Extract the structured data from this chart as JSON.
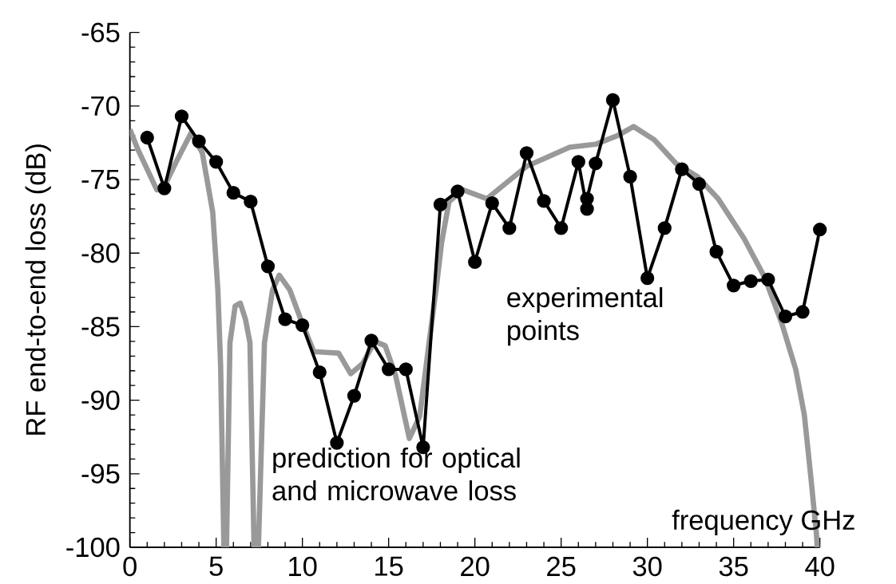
{
  "chart_data": {
    "type": "line",
    "xlabel": "frequency GHz",
    "ylabel": "RF end-to-end loss (dB)",
    "xlim": [
      0,
      40
    ],
    "ylim": [
      -100,
      -65
    ],
    "xticks": [
      0,
      5,
      10,
      15,
      20,
      25,
      30,
      35,
      40
    ],
    "yticks": [
      -65,
      -70,
      -75,
      -80,
      -85,
      -90,
      -95,
      -100
    ],
    "line_style": "solid",
    "series": [
      {
        "name": "prediction for optical and microwave loss",
        "color": "#999999",
        "marker": "none",
        "x": [
          0,
          0.48,
          1.56,
          1.9,
          2.64,
          3.56,
          4.2,
          4.8,
          5.1,
          5.26,
          5.45,
          5.5,
          5.6,
          5.8,
          6.1,
          6.4,
          6.7,
          6.96,
          7.2,
          7.3,
          7.45,
          7.8,
          8.27,
          8.66,
          9.27,
          9.9,
          10.66,
          11.4,
          12.1,
          12.8,
          13.5,
          14.2,
          14.8,
          15.4,
          16.2,
          16.8,
          17.3,
          17.8,
          18.07,
          18.5,
          19.3,
          20.7,
          23,
          25.5,
          27,
          28.3,
          29.2,
          30.4,
          31.65,
          32.9,
          34.1,
          35.6,
          36.8,
          37.8,
          38.6,
          39.1,
          39.5,
          39.8,
          39.85
        ],
        "values": [
          -71.6,
          -73.0,
          -75.7,
          -75.7,
          -73.9,
          -71.8,
          -73.2,
          -77.2,
          -82.5,
          -87.7,
          -100,
          null,
          -100,
          -86.1,
          -83.6,
          -83.4,
          -84.5,
          -86.1,
          -100,
          null,
          -100,
          -86.1,
          -82.5,
          -81.5,
          -82.5,
          -84.5,
          -86.7,
          -86.75,
          -86.8,
          -88.2,
          -87.5,
          -86.0,
          -86.3,
          -88.3,
          -92.6,
          -91.1,
          -86.5,
          -82.0,
          -79.3,
          -76.5,
          -75.7,
          -76.3,
          -74.1,
          -72.8,
          -72.6,
          -72.0,
          -71.4,
          -72.3,
          -73.9,
          -74.8,
          -76.3,
          -79.0,
          -81.65,
          -84.8,
          -87.9,
          -91.0,
          -95.5,
          -99.1,
          -100
        ]
      },
      {
        "name": "experimental points",
        "color": "#000000",
        "marker": "circle",
        "x": [
          1,
          2,
          3,
          4,
          5,
          6,
          7,
          8,
          9,
          10,
          11,
          12,
          13,
          14,
          15,
          16,
          17,
          18,
          19,
          20,
          21,
          22,
          23,
          24,
          25,
          26,
          26.5,
          26.5,
          27,
          28,
          29,
          30,
          31,
          32,
          33,
          34,
          35,
          36,
          37,
          38,
          39,
          40
        ],
        "values": [
          -72.15,
          -75.6,
          -70.7,
          -72.4,
          -73.8,
          -75.9,
          -76.5,
          -80.9,
          -84.5,
          -84.9,
          -88.1,
          -92.9,
          -89.7,
          -85.95,
          -87.9,
          -87.9,
          -93.2,
          -76.7,
          -75.8,
          -80.6,
          -76.6,
          -78.3,
          -73.2,
          -76.45,
          -78.3,
          -73.8,
          -77.0,
          -76.3,
          -73.9,
          -69.6,
          -74.8,
          -81.7,
          -78.3,
          -74.3,
          -75.3,
          -79.9,
          -82.2,
          -81.9,
          -81.8,
          -84.3,
          -84.0,
          -78.4
        ]
      }
    ]
  }
}
